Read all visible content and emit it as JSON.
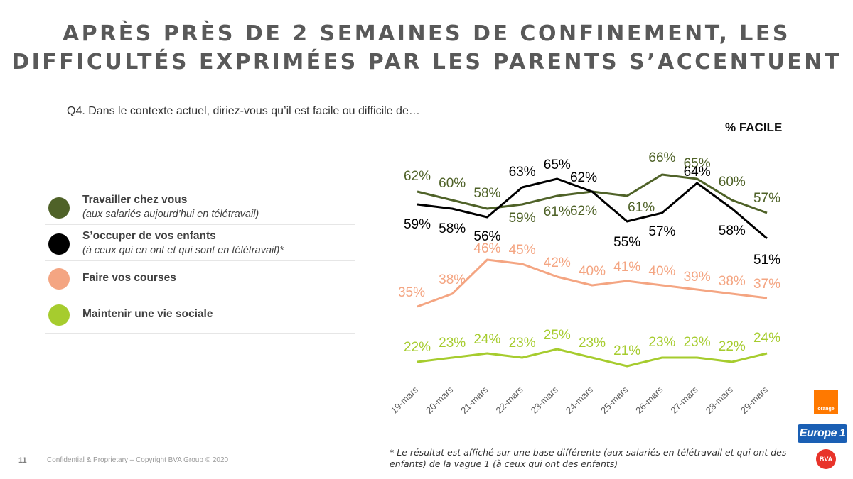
{
  "title_line1": "APRÈS PRÈS DE 2 SEMAINES DE CONFINEMENT, LES",
  "title_line2": "DIFFICULTÉS EXPRIMÉES PAR LES PARENTS S’ACCENTUENT",
  "question": "Q4. Dans le contexte actuel, diriez-vous qu’il est facile ou difficile de…",
  "measure_label": "% FACILE",
  "legend": [
    {
      "label": "Travailler chez vous",
      "sublabel": "(aux salariés aujourd’hui en télétravail)",
      "color": "#4f6228"
    },
    {
      "label": "S’occuper de vos enfants",
      "sublabel": "(à ceux qui en ont et qui sont en télétravail)*",
      "color": "#000000"
    },
    {
      "label": "Faire vos courses",
      "sublabel": "",
      "color": "#f4a582"
    },
    {
      "label": "Maintenir une vie sociale",
      "sublabel": "",
      "color": "#a6cc2e"
    }
  ],
  "chart_data": {
    "type": "line",
    "x": [
      "19-mars",
      "20-mars",
      "21-mars",
      "22-mars",
      "23-mars",
      "24-mars",
      "25-mars",
      "26-mars",
      "27-mars",
      "28-mars",
      "29-mars"
    ],
    "series": [
      {
        "name": "Travailler chez vous",
        "color": "#4f6228",
        "values": [
          62,
          60,
          58,
          59,
          61,
          62,
          61,
          66,
          65,
          60,
          57
        ],
        "labels": [
          "62%",
          "60%",
          "58%",
          "59%",
          "61%",
          "62%",
          "61%",
          "66%",
          "65%",
          "60%",
          "57%"
        ]
      },
      {
        "name": "S’occuper de vos enfants",
        "color": "#000000",
        "values": [
          59,
          58,
          56,
          63,
          65,
          62,
          55,
          57,
          64,
          58,
          51
        ],
        "labels": [
          "59%",
          "58%",
          "56%",
          "63%",
          "65%",
          "62%",
          "55%",
          "57%",
          "64%",
          "58%",
          "51%"
        ]
      },
      {
        "name": "Faire vos courses",
        "color": "#f4a582",
        "values": [
          35,
          38,
          46,
          45,
          42,
          40,
          41,
          40,
          39,
          38,
          37
        ],
        "labels": [
          "35%",
          "38%",
          "46%",
          "45%",
          "42%",
          "40%",
          "41%",
          "40%",
          "39%",
          "38%",
          "37%"
        ]
      },
      {
        "name": "Maintenir une vie sociale",
        "color": "#a6cc2e",
        "values": [
          22,
          23,
          24,
          23,
          25,
          23,
          21,
          23,
          23,
          22,
          24
        ],
        "labels": [
          "22%",
          "23%",
          "24%",
          "23%",
          "25%",
          "23%",
          "21%",
          "23%",
          "23%",
          "22%",
          "24%"
        ]
      }
    ],
    "grid": false,
    "legend_position": "left"
  },
  "footer": {
    "page_number": "11",
    "copyright": "Confidential & Proprietary – Copyright BVA Group ©  2020",
    "footnote": "* Le résultat est affiché sur une base différente (aux salariés en télétravail et qui ont des enfants) de la vague 1 (à ceux qui ont des enfants)"
  },
  "logos": {
    "orange": "orange",
    "europe1": "Europe 1",
    "bva": "BVA"
  }
}
